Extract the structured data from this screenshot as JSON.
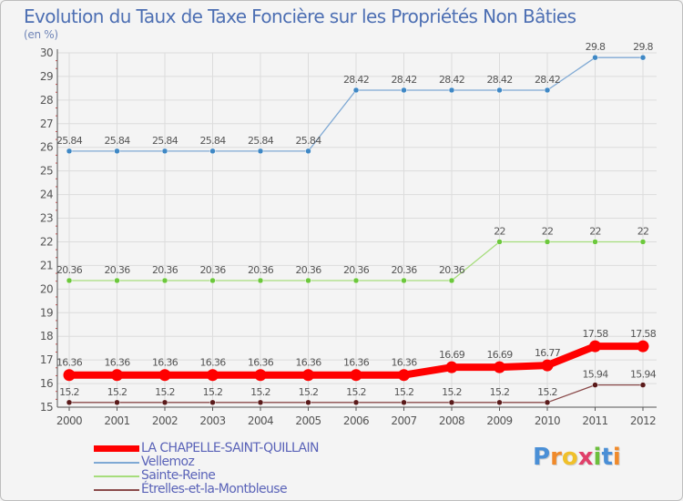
{
  "title": "Evolution du Taux de Taxe Foncière sur les Propriétés Non Bâties",
  "unit_label": "(en %)",
  "logo_text": "Proxiti",
  "colors": {
    "background": "#f4f4f4",
    "title": "#4d6fb3",
    "grid": "#dcdcdc",
    "axis": "#555555",
    "label": "#555555"
  },
  "chart_data": {
    "type": "line",
    "title": "Evolution du Taux de Taxe Foncière sur les Propriétés Non Bâties",
    "ylabel": "(en %)",
    "xlabel": "",
    "grid": true,
    "ylim": [
      15,
      30
    ],
    "yticks": [
      "15",
      "16",
      "17",
      "18",
      "19",
      "20",
      "21",
      "22",
      "23",
      "24",
      "25",
      "26",
      "27",
      "28",
      "29",
      "30"
    ],
    "x": [
      "2000",
      "2001",
      "2002",
      "2003",
      "2004",
      "2005",
      "2006",
      "2007",
      "2008",
      "2009",
      "2010",
      "2011",
      "2012"
    ],
    "series": [
      {
        "name": "LA CHAPELLE-SAINT-QUILLAIN",
        "color": "#ff0000",
        "values": [
          16.36,
          16.36,
          16.36,
          16.36,
          16.36,
          16.36,
          16.36,
          16.36,
          16.69,
          16.69,
          16.77,
          17.58,
          17.58
        ],
        "labels": [
          "16.36",
          "16.36",
          "16.36",
          "16.36",
          "16.36",
          "16.36",
          "16.36",
          "16.36",
          "16.69",
          "16.69",
          "16.77",
          "17.58",
          "17.58"
        ]
      },
      {
        "name": "Vellemoz",
        "color": "#7fa9d4",
        "marker_color": "#3f88c5",
        "values": [
          25.84,
          25.84,
          25.84,
          25.84,
          25.84,
          25.84,
          28.42,
          28.42,
          28.42,
          28.42,
          28.42,
          29.8,
          29.8
        ],
        "labels": [
          "25.84",
          "25.84",
          "25.84",
          "25.84",
          "25.84",
          "25.84",
          "28.42",
          "28.42",
          "28.42",
          "28.42",
          "28.42",
          "29.8",
          "29.8"
        ]
      },
      {
        "name": "Sainte-Reine",
        "color": "#a6dd7c",
        "marker_color": "#6cc83c",
        "values": [
          20.36,
          20.36,
          20.36,
          20.36,
          20.36,
          20.36,
          20.36,
          20.36,
          20.36,
          22,
          22,
          22,
          22
        ],
        "labels": [
          "20.36",
          "20.36",
          "20.36",
          "20.36",
          "20.36",
          "20.36",
          "20.36",
          "20.36",
          "20.36",
          "22",
          "22",
          "22",
          "22"
        ]
      },
      {
        "name": "Étrelles-et-la-Montbleuse",
        "color": "#8a4a4a",
        "marker_color": "#5a1a1a",
        "values": [
          15.2,
          15.2,
          15.2,
          15.2,
          15.2,
          15.2,
          15.2,
          15.2,
          15.2,
          15.2,
          15.2,
          15.94,
          15.94
        ],
        "labels": [
          "15.2",
          "15.2",
          "15.2",
          "15.2",
          "15.2",
          "15.2",
          "15.2",
          "15.2",
          "15.2",
          "15.2",
          "15.2",
          "15.94",
          "15.94"
        ]
      }
    ]
  }
}
